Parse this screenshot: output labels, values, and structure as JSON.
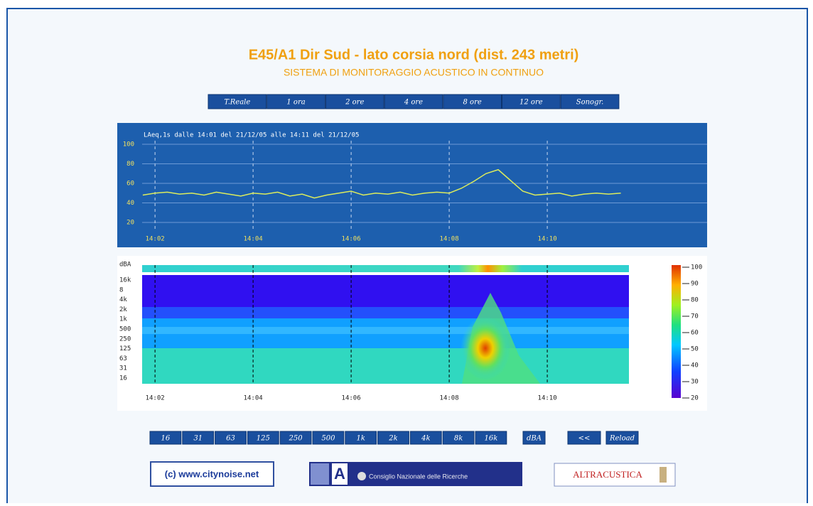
{
  "header": {
    "title": "E45/A1 Dir Sud - lato corsia nord (dist. 243 metri)",
    "subtitle": "SISTEMA DI MONITORAGGIO ACUSTICO IN CONTINUO"
  },
  "period_buttons": [
    "T.Reale",
    "1 ora",
    "2 ore",
    "4 ore",
    "8 ore",
    "12 ore",
    "Sonogr."
  ],
  "chart_data": {
    "type": "line",
    "title": "LAeq,1s dalle 14:01 del 21/12/05 alle 14:11 del 21/12/05",
    "x": [
      1.75,
      2,
      2.25,
      2.5,
      2.75,
      3,
      3.25,
      3.5,
      3.75,
      4,
      4.25,
      4.5,
      4.75,
      5,
      5.25,
      5.5,
      5.75,
      6,
      6.25,
      6.5,
      6.75,
      7,
      7.25,
      7.5,
      7.75,
      8,
      8.25,
      8.5,
      8.75,
      9,
      9.25,
      9.5,
      9.75,
      10,
      10.25,
      10.5,
      10.75,
      11,
      11.25,
      11.5
    ],
    "series": [
      {
        "color": "#dcec5c",
        "values": [
          48,
          50,
          51,
          49,
          50,
          48,
          51,
          49,
          47,
          50,
          49,
          51,
          47,
          49,
          45,
          48,
          50,
          52,
          48,
          50,
          49,
          51,
          48,
          50,
          51,
          50,
          55,
          62,
          70,
          74,
          63,
          52,
          48,
          49,
          50,
          47,
          49,
          50,
          49,
          50
        ]
      }
    ],
    "xlim": [
      1.23,
      13.26
    ],
    "ylim": [
      10,
      110
    ],
    "xticks": [
      {
        "value": 2,
        "label": "14:02"
      },
      {
        "value": 4,
        "label": "14:04"
      },
      {
        "value": 6,
        "label": "14:06"
      },
      {
        "value": 8,
        "label": "14:08"
      },
      {
        "value": 10,
        "label": "14:10"
      }
    ],
    "yticks": [
      100,
      80,
      60,
      40,
      20
    ],
    "grid": true
  },
  "spectrogram": {
    "unit_label": "dBA",
    "frequency_labels": [
      "16k",
      "8",
      "4k",
      "2k",
      "1k",
      "500",
      "250",
      "125",
      "63",
      "31",
      "16"
    ],
    "scale_lim": [
      100,
      20
    ],
    "scale_ticks": [
      100,
      90,
      80,
      70,
      60,
      50,
      40,
      30,
      20
    ]
  },
  "band_buttons": [
    "16",
    "31",
    "63",
    "125",
    "250",
    "500",
    "1k",
    "2k",
    "4k",
    "8k",
    "16k"
  ],
  "nav_buttons": [
    "dBA",
    "<<",
    "Reload"
  ],
  "logos": {
    "citynoise": "(c) www.citynoise.net",
    "cnr": "Consiglio Nazionale delle Ricerche",
    "altracustica": "ALTRACUSTICA"
  }
}
